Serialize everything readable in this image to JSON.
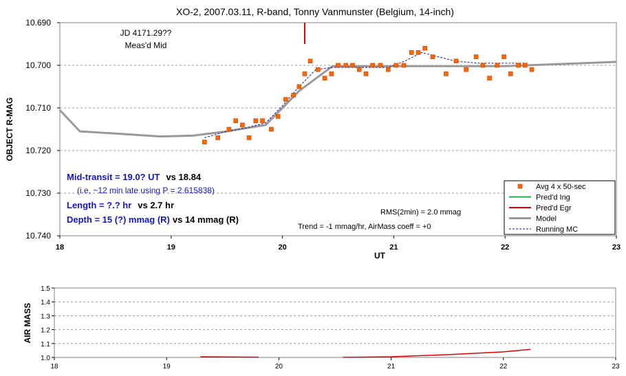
{
  "chart_data": [
    {
      "type": "scatter",
      "title": "XO-2, 2007.03.11, R-band, Tonny Vanmunster (Belgium, 14-inch)",
      "xlabel": "UT",
      "ylabel": "OBJECT R-MAG",
      "xlim": [
        18,
        23
      ],
      "ylim": [
        10.74,
        10.69
      ],
      "y_inverted": true,
      "xticks": [
        "18",
        "19",
        "20",
        "21",
        "22",
        "23"
      ],
      "yticks": [
        "10.690",
        "10.700",
        "10.710",
        "10.720",
        "10.730",
        "10.740"
      ],
      "grid": "horizontal dashed",
      "legend": {
        "placement": "bottom-right",
        "entries": [
          {
            "label": "Avg 4 x 50-sec",
            "color": "#ff6600",
            "marker": "square"
          },
          {
            "label": "Pred'd Ing",
            "color": "#22aa55",
            "marker": "line"
          },
          {
            "label": "Pred'd Egr",
            "color": "#dd0000",
            "marker": "line"
          },
          {
            "label": "Model",
            "color": "#999999",
            "marker": "thick-line"
          },
          {
            "label": "Running MC",
            "color": "#1a1a99",
            "marker": "dashed-line"
          }
        ]
      },
      "annotations": {
        "jd_line1": "JD 4171.29??",
        "jd_line2": "Meas'd Mid",
        "mid_transit_blue": "Mid-transit = 19.0? UT",
        "mid_transit_black": "vs 18.84",
        "period_note": "(i.e, ~12 min late using P = 2.615838)",
        "length_blue": "Length = ?.? hr",
        "length_black": "vs 2.7 hr",
        "depth_blue": "Depth = 15 (?) mmag (R)",
        "depth_black": "vs 14 mmag (R)",
        "rms": "RMS(2min) = 2.0 mmag",
        "trend": "Trend = -1 mmag/hr, AirMass coeff = +0"
      },
      "measured_mid_marker": {
        "x": 20.2,
        "y_top": 10.69,
        "y_bottom": 10.695,
        "color": "#dd0000"
      },
      "series": [
        {
          "name": "Avg 4 x 50-sec",
          "color": "#ff6600",
          "points": [
            [
              19.3,
              10.718
            ],
            [
              19.42,
              10.717
            ],
            [
              19.52,
              10.715
            ],
            [
              19.58,
              10.713
            ],
            [
              19.64,
              10.714
            ],
            [
              19.7,
              10.717
            ],
            [
              19.76,
              10.713
            ],
            [
              19.82,
              10.713
            ],
            [
              19.9,
              10.715
            ],
            [
              19.96,
              10.712
            ],
            [
              20.03,
              10.708
            ],
            [
              20.1,
              10.707
            ],
            [
              20.15,
              10.705
            ],
            [
              20.2,
              10.702
            ],
            [
              20.25,
              10.699
            ],
            [
              20.32,
              10.701
            ],
            [
              20.38,
              10.703
            ],
            [
              20.44,
              10.702
            ],
            [
              20.5,
              10.7
            ],
            [
              20.57,
              10.7
            ],
            [
              20.63,
              10.7
            ],
            [
              20.69,
              10.701
            ],
            [
              20.75,
              10.702
            ],
            [
              20.81,
              10.7
            ],
            [
              20.88,
              10.7
            ],
            [
              20.95,
              10.701
            ],
            [
              21.02,
              10.7
            ],
            [
              21.09,
              10.7
            ],
            [
              21.16,
              10.697
            ],
            [
              21.22,
              10.697
            ],
            [
              21.28,
              10.696
            ],
            [
              21.35,
              10.698
            ],
            [
              21.47,
              10.702
            ],
            [
              21.56,
              10.699
            ],
            [
              21.65,
              10.701
            ],
            [
              21.74,
              10.698
            ],
            [
              21.8,
              10.7
            ],
            [
              21.86,
              10.703
            ],
            [
              21.93,
              10.7
            ],
            [
              21.99,
              10.698
            ],
            [
              22.05,
              10.702
            ],
            [
              22.12,
              10.7
            ],
            [
              22.18,
              10.7
            ],
            [
              22.24,
              10.701
            ]
          ]
        },
        {
          "name": "Model",
          "color": "#999999",
          "points": [
            [
              18.0,
              10.7105
            ],
            [
              18.18,
              10.7155
            ],
            [
              18.5,
              10.716
            ],
            [
              18.9,
              10.7167
            ],
            [
              19.2,
              10.7165
            ],
            [
              19.5,
              10.7155
            ],
            [
              19.85,
              10.714
            ],
            [
              20.15,
              10.706
            ],
            [
              20.45,
              10.7002
            ],
            [
              21.0,
              10.7002
            ],
            [
              22.0,
              10.7002
            ],
            [
              23.0,
              10.6992
            ]
          ]
        },
        {
          "name": "Running MC",
          "color": "#1a1a99",
          "points": [
            [
              19.3,
              10.717
            ],
            [
              19.5,
              10.7155
            ],
            [
              19.7,
              10.7145
            ],
            [
              19.85,
              10.7135
            ],
            [
              20.0,
              10.7095
            ],
            [
              20.15,
              10.705
            ],
            [
              20.3,
              10.701
            ],
            [
              20.45,
              10.7005
            ],
            [
              20.7,
              10.7005
            ],
            [
              20.95,
              10.7005
            ],
            [
              21.1,
              10.699
            ],
            [
              21.25,
              10.697
            ],
            [
              21.4,
              10.698
            ],
            [
              21.55,
              10.699
            ],
            [
              21.75,
              10.6995
            ],
            [
              22.0,
              10.6995
            ],
            [
              22.2,
              10.6995
            ]
          ]
        }
      ]
    },
    {
      "type": "line",
      "ylabel": "AIR MASS",
      "xlim": [
        18,
        23
      ],
      "ylim": [
        1.0,
        1.5
      ],
      "xticks": [
        "18",
        "19",
        "20",
        "21",
        "22",
        "23"
      ],
      "yticks": [
        "1.0",
        "1.1",
        "1.2",
        "1.3",
        "1.4",
        "1.5"
      ],
      "grid": "horizontal dashed",
      "series": [
        {
          "name": "Air mass",
          "color": "#dd0000",
          "segments": [
            [
              [
                19.3,
                1.005
              ],
              [
                19.82,
                1.002
              ]
            ],
            [
              [
                20.57,
                1.001
              ],
              [
                21.0,
                1.005
              ],
              [
                21.5,
                1.02
              ],
              [
                22.0,
                1.04
              ],
              [
                22.24,
                1.058
              ]
            ]
          ]
        }
      ]
    }
  ]
}
